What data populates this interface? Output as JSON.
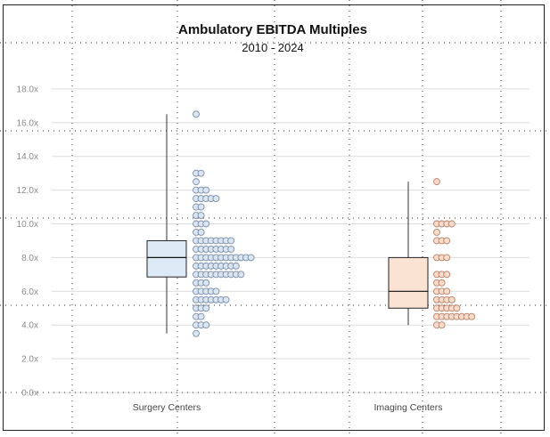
{
  "chart_data": {
    "type": "box-and-beeswarm",
    "title": "Ambulatory EBITDA Multiples",
    "subtitle": "2010 - 2024",
    "xlabel": "",
    "ylabel": "",
    "ylim": [
      0,
      19
    ],
    "yticks": [
      {
        "value": 0,
        "label": "0.0x"
      },
      {
        "value": 2,
        "label": "2.0x"
      },
      {
        "value": 4,
        "label": "4.0x"
      },
      {
        "value": 6,
        "label": "6.0x"
      },
      {
        "value": 8,
        "label": "8.0x"
      },
      {
        "value": 10,
        "label": "10.0x"
      },
      {
        "value": 12,
        "label": "12.0x"
      },
      {
        "value": 14,
        "label": "14.0x"
      },
      {
        "value": 16,
        "label": "16.0x"
      },
      {
        "value": 18,
        "label": "18.0x"
      }
    ],
    "grid": true,
    "categories": [
      "Surgery Centers",
      "Imaging Centers"
    ],
    "series": [
      {
        "category": "Surgery Centers",
        "box_fill": "#ddeaf6",
        "point_fill": "#dbe5f1",
        "point_stroke": "#7a8fa8",
        "box": {
          "whisker_low": 3.5,
          "q1": 6.85,
          "median": 8.0,
          "q3": 9.0,
          "whisker_high": 16.5
        },
        "points": [
          {
            "y": 16.5,
            "count": 1
          },
          {
            "y": 13.0,
            "count": 2
          },
          {
            "y": 12.5,
            "count": 1
          },
          {
            "y": 12.0,
            "count": 3
          },
          {
            "y": 11.5,
            "count": 5
          },
          {
            "y": 11.0,
            "count": 2
          },
          {
            "y": 10.5,
            "count": 2
          },
          {
            "y": 10.0,
            "count": 3
          },
          {
            "y": 9.5,
            "count": 2
          },
          {
            "y": 9.0,
            "count": 8
          },
          {
            "y": 8.5,
            "count": 8
          },
          {
            "y": 8.0,
            "count": 12
          },
          {
            "y": 7.5,
            "count": 9
          },
          {
            "y": 7.0,
            "count": 10
          },
          {
            "y": 6.5,
            "count": 3
          },
          {
            "y": 6.0,
            "count": 5
          },
          {
            "y": 5.5,
            "count": 7
          },
          {
            "y": 5.0,
            "count": 3
          },
          {
            "y": 4.5,
            "count": 2
          },
          {
            "y": 4.0,
            "count": 3
          },
          {
            "y": 3.5,
            "count": 1
          }
        ]
      },
      {
        "category": "Imaging Centers",
        "box_fill": "#fbe3d4",
        "point_fill": "#f7dccb",
        "point_stroke": "#b9826a",
        "box": {
          "whisker_low": 4.0,
          "q1": 5.0,
          "median": 6.0,
          "q3": 8.0,
          "whisker_high": 12.5
        },
        "points": [
          {
            "y": 12.5,
            "count": 1
          },
          {
            "y": 10.0,
            "count": 4
          },
          {
            "y": 9.5,
            "count": 1
          },
          {
            "y": 9.0,
            "count": 3
          },
          {
            "y": 8.0,
            "count": 3
          },
          {
            "y": 7.0,
            "count": 3
          },
          {
            "y": 6.5,
            "count": 2
          },
          {
            "y": 6.0,
            "count": 3
          },
          {
            "y": 5.5,
            "count": 4
          },
          {
            "y": 5.0,
            "count": 5
          },
          {
            "y": 4.5,
            "count": 8
          },
          {
            "y": 4.0,
            "count": 2
          }
        ]
      }
    ]
  }
}
